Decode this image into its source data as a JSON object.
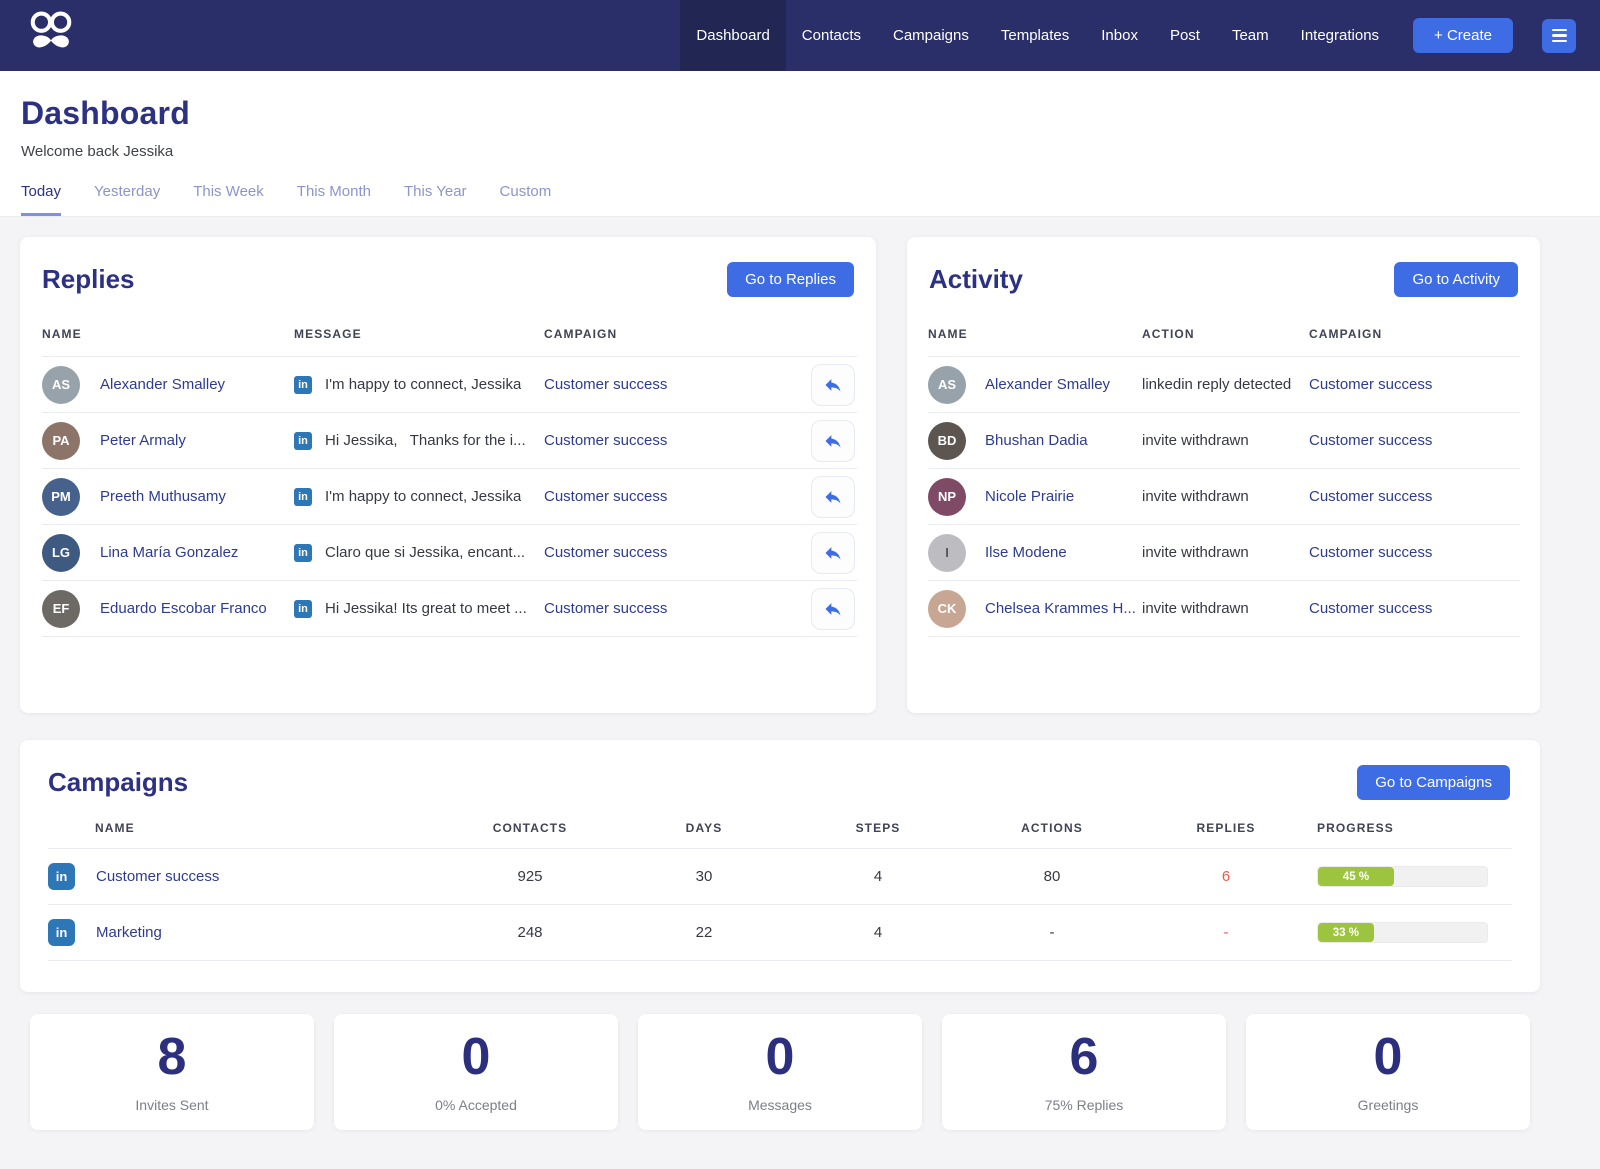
{
  "nav": {
    "items": [
      {
        "label": "Dashboard",
        "active": true
      },
      {
        "label": "Contacts",
        "active": false
      },
      {
        "label": "Campaigns",
        "active": false
      },
      {
        "label": "Templates",
        "active": false
      },
      {
        "label": "Inbox",
        "active": false
      },
      {
        "label": "Post",
        "active": false
      },
      {
        "label": "Team",
        "active": false
      },
      {
        "label": "Integrations",
        "active": false
      }
    ],
    "create_label": "+ Create"
  },
  "header": {
    "title": "Dashboard",
    "subtitle": "Welcome back Jessika",
    "tabs": [
      {
        "label": "Today",
        "active": true
      },
      {
        "label": "Yesterday",
        "active": false
      },
      {
        "label": "This Week",
        "active": false
      },
      {
        "label": "This Month",
        "active": false
      },
      {
        "label": "This Year",
        "active": false
      },
      {
        "label": "Custom",
        "active": false
      }
    ]
  },
  "replies": {
    "title": "Replies",
    "button": "Go to Replies",
    "columns": [
      "NAME",
      "MESSAGE",
      "CAMPAIGN"
    ],
    "rows": [
      {
        "name": "Alexander Smalley",
        "message": "I'm happy to connect, Jessika",
        "campaign": "Customer success",
        "avatar": {
          "initials": "AS",
          "bg": "#97a2ab",
          "fg": "#ffffff"
        }
      },
      {
        "name": "Peter Armaly",
        "message": "Hi Jessika,   Thanks for the i...",
        "campaign": "Customer success",
        "avatar": {
          "initials": "PA",
          "bg": "#8c7468",
          "fg": "#ffffff"
        }
      },
      {
        "name": "Preeth Muthusamy",
        "message": "I'm happy to connect, Jessika",
        "campaign": "Customer success",
        "avatar": {
          "initials": "PM",
          "bg": "#46628c",
          "fg": "#ffffff"
        }
      },
      {
        "name": "Lina María Gonzalez",
        "message": "Claro que si Jessika, encant...",
        "campaign": "Customer success",
        "avatar": {
          "initials": "LG",
          "bg": "#3f5a80",
          "fg": "#ffffff"
        }
      },
      {
        "name": "Eduardo Escobar Franco",
        "message": "Hi Jessika! Its great to meet ...",
        "campaign": "Customer success",
        "avatar": {
          "initials": "EF",
          "bg": "#6d6a66",
          "fg": "#ffffff"
        }
      }
    ]
  },
  "activity": {
    "title": "Activity",
    "button": "Go to Activity",
    "columns": [
      "NAME",
      "ACTION",
      "CAMPAIGN"
    ],
    "rows": [
      {
        "name": "Alexander Smalley",
        "action": "linkedin reply detected",
        "campaign": "Customer success",
        "avatar": {
          "initials": "AS",
          "bg": "#97a2ab",
          "fg": "#ffffff"
        }
      },
      {
        "name": "Bhushan Dadia",
        "action": "invite withdrawn",
        "campaign": "Customer success",
        "avatar": {
          "initials": "BD",
          "bg": "#5c5550",
          "fg": "#ffffff"
        }
      },
      {
        "name": "Nicole Prairie",
        "action": "invite withdrawn",
        "campaign": "Customer success",
        "avatar": {
          "initials": "NP",
          "bg": "#7e4a66",
          "fg": "#ffffff"
        }
      },
      {
        "name": "Ilse Modene",
        "action": "invite withdrawn",
        "campaign": "Customer success",
        "avatar": {
          "initials": "I",
          "bg": "#bdbdc1",
          "fg": "#55555c"
        }
      },
      {
        "name": "Chelsea Krammes H...",
        "action": "invite withdrawn",
        "campaign": "Customer success",
        "avatar": {
          "initials": "CK",
          "bg": "#c7a693",
          "fg": "#ffffff"
        }
      }
    ]
  },
  "campaigns": {
    "title": "Campaigns",
    "button": "Go to Campaigns",
    "columns": [
      "NAME",
      "CONTACTS",
      "DAYS",
      "STEPS",
      "ACTIONS",
      "REPLIES",
      "PROGRESS"
    ],
    "rows": [
      {
        "name": "Customer success",
        "contacts": "925",
        "days": "30",
        "steps": "4",
        "actions": "80",
        "replies": "6",
        "progress_pct": 45,
        "progress_label": "45 %"
      },
      {
        "name": "Marketing",
        "contacts": "248",
        "days": "22",
        "steps": "4",
        "actions": "-",
        "replies": "-",
        "progress_pct": 33,
        "progress_label": "33 %"
      }
    ]
  },
  "stats": [
    {
      "value": "8",
      "label": "Invites Sent"
    },
    {
      "value": "0",
      "label": "0% Accepted"
    },
    {
      "value": "0",
      "label": "Messages"
    },
    {
      "value": "6",
      "label": "75% Replies"
    },
    {
      "value": "0",
      "label": "Greetings"
    }
  ],
  "colors": {
    "navbar": "#2a2e69",
    "navbar_active": "#222652",
    "accent_blue": "#3e6ce4",
    "title_navy": "#2d3184",
    "link_navy": "#2e3b92",
    "linkedin_blue": "#2e77b6",
    "progress_green": "#9cc43f",
    "replies_red": "#e8584c",
    "page_bg": "#f4f4f6"
  }
}
